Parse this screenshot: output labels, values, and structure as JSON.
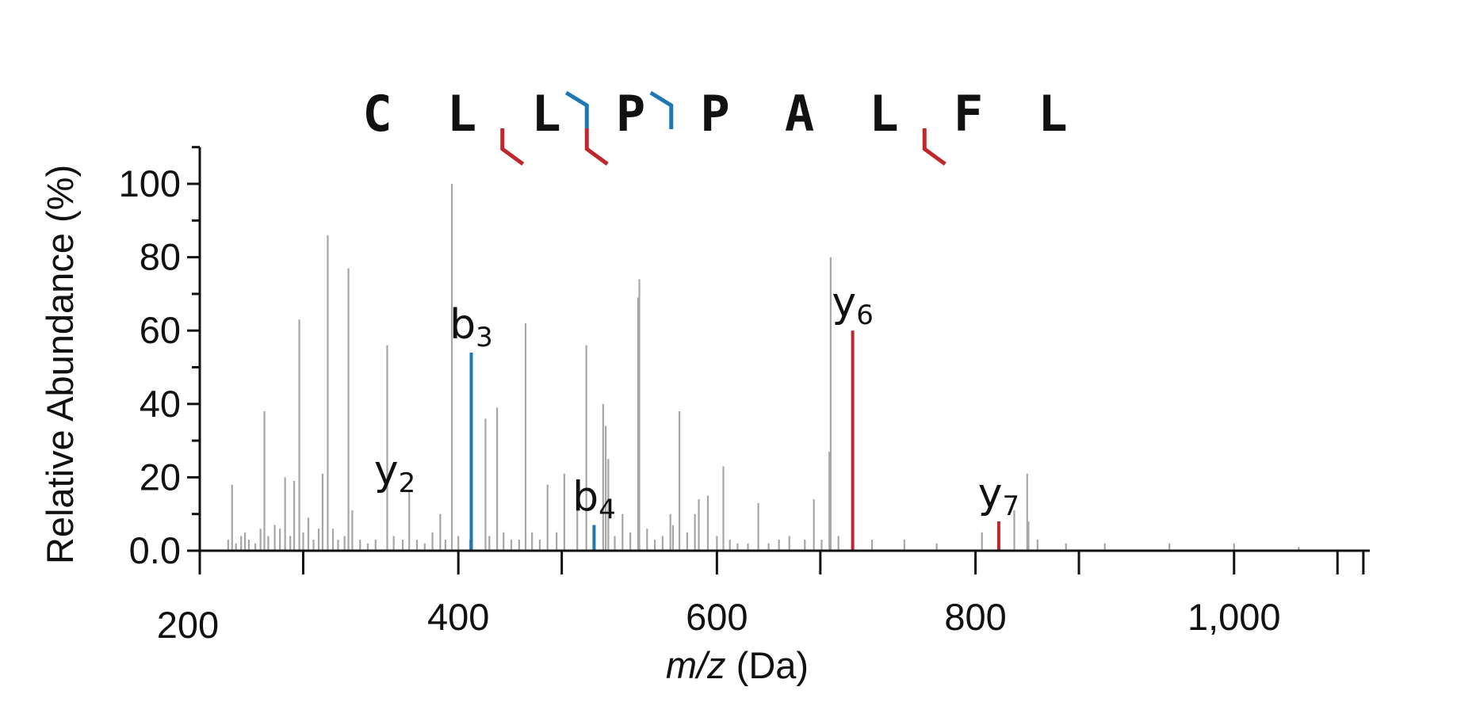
{
  "chart_data": {
    "type": "bar",
    "title": "",
    "xlabel_italic": "m/z",
    "xlabel_unit": " (Da)",
    "ylabel": "Relative Abundance (%)",
    "xlim": [
      200,
      1105
    ],
    "ylim": [
      0,
      110
    ],
    "x_ticks": [
      200,
      400,
      600,
      800,
      1000
    ],
    "x_tick_labels": [
      "200",
      "400",
      "600",
      "800",
      "1,000"
    ],
    "x_minor_ticks": [
      280,
      480,
      680,
      880,
      1080,
      1100
    ],
    "y_ticks": [
      0,
      20,
      40,
      60,
      80,
      100
    ],
    "y_tick_labels": [
      "0.0",
      "20",
      "40",
      "60",
      "80",
      "100"
    ],
    "y_minor_ticks": [
      10,
      30,
      50,
      70,
      90,
      110
    ],
    "sequence": [
      "C",
      "L",
      "L",
      "P",
      "P",
      "A",
      "L",
      "F",
      "L"
    ],
    "fragment_markers": [
      {
        "after_index": 1,
        "ion": "y",
        "color": "#c0272d"
      },
      {
        "after_index": 2,
        "ion": "b",
        "color": "#1f77b4"
      },
      {
        "after_index": 2,
        "ion": "y",
        "color": "#c0272d"
      },
      {
        "after_index": 3,
        "ion": "b",
        "color": "#1f77b4"
      },
      {
        "after_index": 6,
        "ion": "y",
        "color": "#c0272d"
      }
    ],
    "colors": {
      "unmatched": "#a6a6a6",
      "b_ion": "#1f77b4",
      "y_ion": "#c0272d"
    },
    "peaks": [
      {
        "mz": 222,
        "value": 3
      },
      {
        "mz": 225,
        "value": 18
      },
      {
        "mz": 228,
        "value": 2
      },
      {
        "mz": 232,
        "value": 4
      },
      {
        "mz": 235,
        "value": 5
      },
      {
        "mz": 238,
        "value": 3
      },
      {
        "mz": 243,
        "value": 2
      },
      {
        "mz": 247,
        "value": 6
      },
      {
        "mz": 250,
        "value": 38
      },
      {
        "mz": 253,
        "value": 4
      },
      {
        "mz": 258,
        "value": 7
      },
      {
        "mz": 262,
        "value": 6
      },
      {
        "mz": 266,
        "value": 20
      },
      {
        "mz": 270,
        "value": 4
      },
      {
        "mz": 273,
        "value": 19
      },
      {
        "mz": 277,
        "value": 63
      },
      {
        "mz": 280,
        "value": 5
      },
      {
        "mz": 284,
        "value": 9
      },
      {
        "mz": 288,
        "value": 3
      },
      {
        "mz": 292,
        "value": 6
      },
      {
        "mz": 295,
        "value": 21
      },
      {
        "mz": 299,
        "value": 86
      },
      {
        "mz": 303,
        "value": 6
      },
      {
        "mz": 307,
        "value": 3
      },
      {
        "mz": 312,
        "value": 4
      },
      {
        "mz": 315,
        "value": 77
      },
      {
        "mz": 318,
        "value": 11
      },
      {
        "mz": 324,
        "value": 3
      },
      {
        "mz": 330,
        "value": 2
      },
      {
        "mz": 336,
        "value": 3
      },
      {
        "mz": 345,
        "value": 56
      },
      {
        "mz": 350,
        "value": 4
      },
      {
        "mz": 357,
        "value": 3
      },
      {
        "mz": 362,
        "value": 16
      },
      {
        "mz": 368,
        "value": 3
      },
      {
        "mz": 374,
        "value": 2
      },
      {
        "mz": 380,
        "value": 5
      },
      {
        "mz": 386,
        "value": 10
      },
      {
        "mz": 390,
        "value": 3
      },
      {
        "mz": 395,
        "value": 100
      },
      {
        "mz": 400,
        "value": 4
      },
      {
        "mz": 409,
        "value": 3
      },
      {
        "mz": 421,
        "value": 36
      },
      {
        "mz": 424,
        "value": 4
      },
      {
        "mz": 430,
        "value": 39
      },
      {
        "mz": 435,
        "value": 5
      },
      {
        "mz": 441,
        "value": 3
      },
      {
        "mz": 447,
        "value": 3
      },
      {
        "mz": 452,
        "value": 62
      },
      {
        "mz": 457,
        "value": 5
      },
      {
        "mz": 463,
        "value": 3
      },
      {
        "mz": 469,
        "value": 18
      },
      {
        "mz": 476,
        "value": 5
      },
      {
        "mz": 482,
        "value": 21
      },
      {
        "mz": 492,
        "value": 12
      },
      {
        "mz": 499,
        "value": 56
      },
      {
        "mz": 505,
        "value": 5
      },
      {
        "mz": 512,
        "value": 40
      },
      {
        "mz": 514,
        "value": 34
      },
      {
        "mz": 516,
        "value": 25
      },
      {
        "mz": 521,
        "value": 4
      },
      {
        "mz": 527,
        "value": 10
      },
      {
        "mz": 533,
        "value": 5
      },
      {
        "mz": 539,
        "value": 69
      },
      {
        "mz": 540,
        "value": 74
      },
      {
        "mz": 546,
        "value": 6
      },
      {
        "mz": 552,
        "value": 3
      },
      {
        "mz": 558,
        "value": 4
      },
      {
        "mz": 564,
        "value": 10
      },
      {
        "mz": 566,
        "value": 7
      },
      {
        "mz": 571,
        "value": 38
      },
      {
        "mz": 577,
        "value": 5
      },
      {
        "mz": 583,
        "value": 10
      },
      {
        "mz": 586,
        "value": 14
      },
      {
        "mz": 593,
        "value": 15
      },
      {
        "mz": 600,
        "value": 4
      },
      {
        "mz": 605,
        "value": 23
      },
      {
        "mz": 610,
        "value": 3
      },
      {
        "mz": 616,
        "value": 2
      },
      {
        "mz": 624,
        "value": 2
      },
      {
        "mz": 632,
        "value": 13
      },
      {
        "mz": 640,
        "value": 2
      },
      {
        "mz": 648,
        "value": 3
      },
      {
        "mz": 656,
        "value": 4
      },
      {
        "mz": 668,
        "value": 3
      },
      {
        "mz": 675,
        "value": 14
      },
      {
        "mz": 681,
        "value": 3
      },
      {
        "mz": 687,
        "value": 27
      },
      {
        "mz": 688,
        "value": 80
      },
      {
        "mz": 694,
        "value": 4
      },
      {
        "mz": 720,
        "value": 3
      },
      {
        "mz": 745,
        "value": 3
      },
      {
        "mz": 770,
        "value": 2
      },
      {
        "mz": 805,
        "value": 5
      },
      {
        "mz": 830,
        "value": 11
      },
      {
        "mz": 840,
        "value": 21
      },
      {
        "mz": 841,
        "value": 8
      },
      {
        "mz": 848,
        "value": 3
      },
      {
        "mz": 870,
        "value": 2
      },
      {
        "mz": 900,
        "value": 2
      },
      {
        "mz": 950,
        "value": 2
      },
      {
        "mz": 1000,
        "value": 2
      },
      {
        "mz": 1050,
        "value": 1
      }
    ],
    "matched_peaks": [
      {
        "mz": 410,
        "value": 54,
        "ion": "b",
        "label": "b",
        "sub": "3",
        "color": "#1f77b4"
      },
      {
        "mz": 505,
        "value": 7,
        "ion": "b",
        "label": "b",
        "sub": "4",
        "color": "#1f77b4"
      },
      {
        "mz": 705,
        "value": 60,
        "ion": "y",
        "label": "y",
        "sub": "6",
        "color": "#c0272d"
      },
      {
        "mz": 818,
        "value": 8,
        "ion": "y",
        "label": "y",
        "sub": "7",
        "color": "#c0272d"
      }
    ],
    "peak_labels": [
      {
        "mz": 346,
        "value": 16,
        "label": "y",
        "sub": "2"
      }
    ]
  }
}
